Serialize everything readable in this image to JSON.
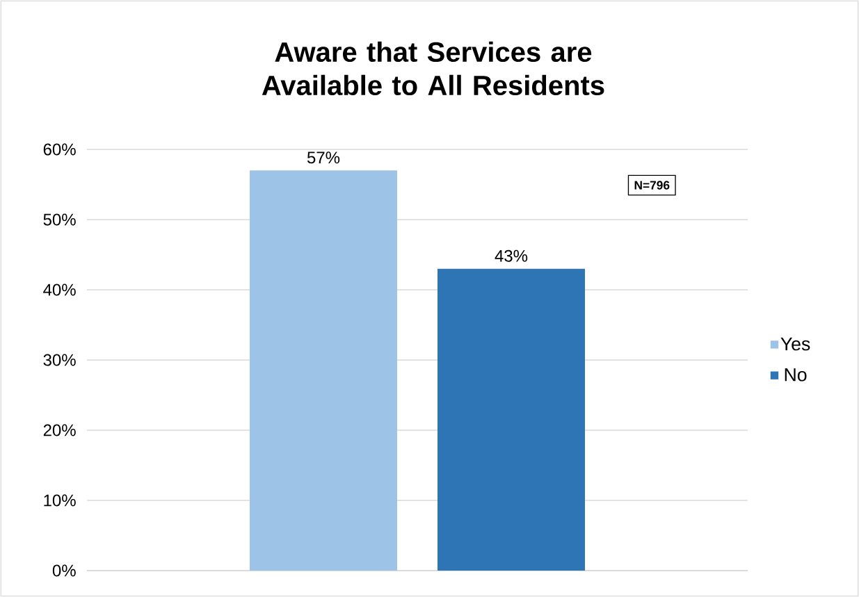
{
  "chart_data": {
    "type": "bar",
    "title": "Aware that Services are Available to All Residents",
    "categories": [
      null
    ],
    "series": [
      {
        "name": "Yes",
        "color": "#9dc3e6",
        "values": [
          57
        ],
        "value_labels": [
          "57%"
        ]
      },
      {
        "name": "No",
        "color": "#2e75b6",
        "values": [
          43
        ],
        "value_labels": [
          "43%"
        ]
      }
    ],
    "ylim": [
      0,
      60
    ],
    "yticks": [
      {
        "value": 0,
        "label": "0%"
      },
      {
        "value": 10,
        "label": "10%"
      },
      {
        "value": 20,
        "label": "20%"
      },
      {
        "value": 30,
        "label": "30%"
      },
      {
        "value": 40,
        "label": "40%"
      },
      {
        "value": 50,
        "label": "50%"
      },
      {
        "value": 60,
        "label": "60%"
      }
    ],
    "grid": "y",
    "legend": "right",
    "annotations": [
      "N=796"
    ]
  }
}
